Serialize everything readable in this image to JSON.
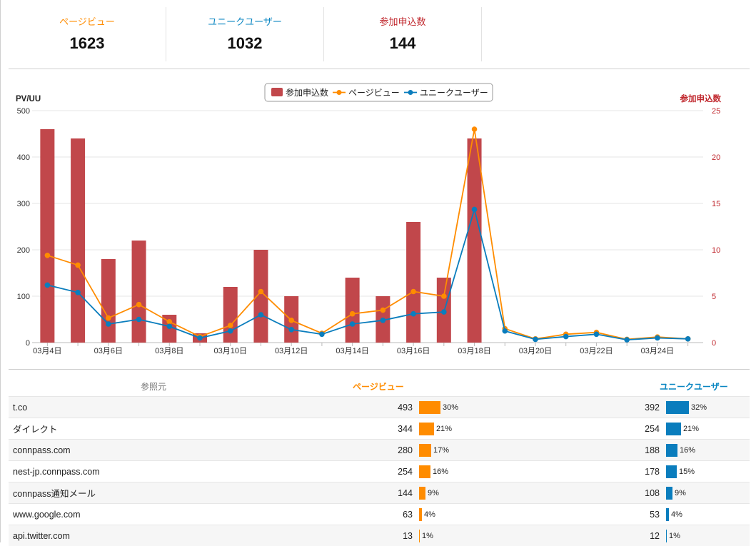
{
  "summary": [
    {
      "label": "ページビュー",
      "value": "1623",
      "color": "#ff8c00"
    },
    {
      "label": "ユニークユーザー",
      "value": "1032",
      "color": "#0a86c2"
    },
    {
      "label": "参加申込数",
      "value": "144",
      "color": "#c0272d"
    }
  ],
  "chart_data": {
    "type": "bar",
    "x": [
      "03月4日",
      "03月5日",
      "03月6日",
      "03月7日",
      "03月8日",
      "03月9日",
      "03月10日",
      "03月11日",
      "03月12日",
      "03月13日",
      "03月14日",
      "03月15日",
      "03月16日",
      "03月17日",
      "03月18日",
      "03月19日",
      "03月20日",
      "03月21日",
      "03月22日",
      "03月23日",
      "03月24日",
      "03月25日"
    ],
    "xticks": [
      "03月4日",
      "03月6日",
      "03月8日",
      "03月10日",
      "03月12日",
      "03月14日",
      "03月16日",
      "03月18日",
      "03月20日",
      "03月22日",
      "03月24日"
    ],
    "ylabel": "PV/UU",
    "ylabel_right": "参加申込数",
    "ylim": [
      0,
      500
    ],
    "yticks": [
      0,
      100,
      200,
      300,
      400,
      500
    ],
    "ylim_right": [
      0,
      25
    ],
    "yticks_right": [
      0,
      5,
      10,
      15,
      20,
      25
    ],
    "grid": true,
    "legend": "top-center",
    "series": [
      {
        "name": "参加申込数",
        "type": "bar",
        "axis": "right",
        "color": "#c1474b",
        "values": [
          23,
          22,
          9,
          11,
          3,
          1,
          6,
          10,
          5,
          0,
          7,
          5,
          13,
          7,
          22,
          0,
          0,
          0,
          0,
          0,
          0,
          0
        ]
      },
      {
        "name": "ページビュー",
        "type": "line",
        "axis": "left",
        "color": "#ff8c00",
        "values": [
          188,
          167,
          53,
          82,
          45,
          13,
          37,
          110,
          48,
          20,
          62,
          70,
          110,
          100,
          460,
          30,
          8,
          18,
          22,
          7,
          12,
          8
        ]
      },
      {
        "name": "ユニークユーザー",
        "type": "line",
        "axis": "left",
        "color": "#0a7dbd",
        "values": [
          124,
          108,
          40,
          50,
          35,
          10,
          25,
          60,
          28,
          18,
          40,
          48,
          62,
          66,
          287,
          25,
          7,
          13,
          18,
          6,
          10,
          8
        ]
      }
    ]
  },
  "referrers": {
    "headers": {
      "source": "参照元",
      "pv": "ページビュー",
      "uu": "ユニークユーザー"
    },
    "rows": [
      {
        "source": "t.co",
        "pv": "493",
        "pv_pct": "30%",
        "pv_frac": 0.3,
        "uu": "392",
        "uu_pct": "32%",
        "uu_frac": 0.32
      },
      {
        "source": "ダイレクト",
        "pv": "344",
        "pv_pct": "21%",
        "pv_frac": 0.21,
        "uu": "254",
        "uu_pct": "21%",
        "uu_frac": 0.21
      },
      {
        "source": "connpass.com",
        "pv": "280",
        "pv_pct": "17%",
        "pv_frac": 0.17,
        "uu": "188",
        "uu_pct": "16%",
        "uu_frac": 0.16
      },
      {
        "source": "nest-jp.connpass.com",
        "pv": "254",
        "pv_pct": "16%",
        "pv_frac": 0.16,
        "uu": "178",
        "uu_pct": "15%",
        "uu_frac": 0.15
      },
      {
        "source": "connpass通知メール",
        "pv": "144",
        "pv_pct": "9%",
        "pv_frac": 0.09,
        "uu": "108",
        "uu_pct": "9%",
        "uu_frac": 0.09
      },
      {
        "source": "www.google.com",
        "pv": "63",
        "pv_pct": "4%",
        "pv_frac": 0.04,
        "uu": "53",
        "uu_pct": "4%",
        "uu_frac": 0.04
      },
      {
        "source": "api.twitter.com",
        "pv": "13",
        "pv_pct": "1%",
        "pv_frac": 0.01,
        "uu": "12",
        "uu_pct": "1%",
        "uu_frac": 0.01
      }
    ]
  }
}
